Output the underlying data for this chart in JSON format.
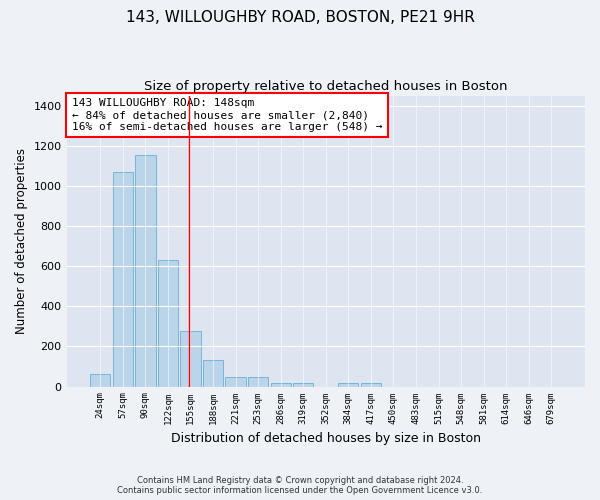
{
  "title": "143, WILLOUGHBY ROAD, BOSTON, PE21 9HR",
  "subtitle": "Size of property relative to detached houses in Boston",
  "xlabel": "Distribution of detached houses by size in Boston",
  "ylabel": "Number of detached properties",
  "footer_line1": "Contains HM Land Registry data © Crown copyright and database right 2024.",
  "footer_line2": "Contains public sector information licensed under the Open Government Licence v3.0.",
  "annotation_line1": "143 WILLOUGHBY ROAD: 148sqm",
  "annotation_line2": "← 84% of detached houses are smaller (2,840)",
  "annotation_line3": "16% of semi-detached houses are larger (548) →",
  "bar_labels": [
    "24sqm",
    "57sqm",
    "90sqm",
    "122sqm",
    "155sqm",
    "188sqm",
    "221sqm",
    "253sqm",
    "286sqm",
    "319sqm",
    "352sqm",
    "384sqm",
    "417sqm",
    "450sqm",
    "483sqm",
    "515sqm",
    "548sqm",
    "581sqm",
    "614sqm",
    "646sqm",
    "679sqm"
  ],
  "bar_values": [
    65,
    1070,
    1155,
    630,
    275,
    130,
    50,
    50,
    20,
    20,
    0,
    20,
    20,
    0,
    0,
    0,
    0,
    0,
    0,
    0,
    0
  ],
  "bar_color": "#bad4ea",
  "bar_edge_color": "#6aaed6",
  "vline_x": 3.93,
  "vline_color": "red",
  "ylim": [
    0,
    1450
  ],
  "yticks": [
    0,
    200,
    400,
    600,
    800,
    1000,
    1200,
    1400
  ],
  "title_fontsize": 11,
  "subtitle_fontsize": 9.5,
  "annotation_box_edgecolor": "red",
  "annotation_fontsize": 8,
  "bg_color": "#eef2f7",
  "plot_bg_color": "#dde6f0"
}
